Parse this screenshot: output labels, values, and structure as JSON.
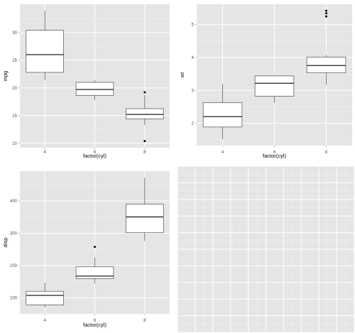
{
  "chart_data": [
    {
      "type": "boxplot",
      "xlabel": "factor(cyl)",
      "ylabel": "mpg",
      "categories": [
        "4",
        "6",
        "8"
      ],
      "boxes": [
        {
          "min": 21.4,
          "q1": 22.8,
          "median": 26.0,
          "q3": 30.4,
          "max": 33.9,
          "outliers": []
        },
        {
          "min": 17.8,
          "q1": 18.65,
          "median": 19.7,
          "q3": 21.0,
          "max": 21.4,
          "outliers": []
        },
        {
          "min": 13.3,
          "q1": 14.4,
          "median": 15.2,
          "q3": 16.25,
          "max": 18.7,
          "outliers": [
            10.4,
            19.2
          ]
        }
      ],
      "yticks": [
        10,
        15,
        20,
        25,
        30
      ],
      "ylim": [
        9.2,
        35.1
      ],
      "grid": true
    },
    {
      "type": "boxplot",
      "xlabel": "factor(cyl)",
      "ylabel": "wt",
      "categories": [
        "4",
        "6",
        "8"
      ],
      "boxes": [
        {
          "min": 1.513,
          "q1": 1.885,
          "median": 2.2,
          "q3": 2.623,
          "max": 3.19,
          "outliers": []
        },
        {
          "min": 2.62,
          "q1": 2.822,
          "median": 3.215,
          "q3": 3.44,
          "max": 3.46,
          "outliers": []
        },
        {
          "min": 3.17,
          "q1": 3.533,
          "median": 3.755,
          "q3": 4.014,
          "max": 4.07,
          "outliers": [
            5.25,
            5.345,
            5.424
          ]
        }
      ],
      "yticks": [
        2,
        3,
        4,
        5
      ],
      "ylim": [
        1.32,
        5.62
      ],
      "grid": true
    },
    {
      "type": "boxplot",
      "xlabel": "factor(cyl)",
      "ylabel": "disp",
      "categories": [
        "4",
        "6",
        "8"
      ],
      "boxes": [
        {
          "min": 71.1,
          "q1": 78.85,
          "median": 108.0,
          "q3": 120.65,
          "max": 146.7,
          "outliers": []
        },
        {
          "min": 145.0,
          "q1": 160.0,
          "median": 167.6,
          "q3": 196.3,
          "max": 225.0,
          "outliers": [
            258.0
          ]
        },
        {
          "min": 275.8,
          "q1": 301.75,
          "median": 350.5,
          "q3": 390.0,
          "max": 472.0,
          "outliers": []
        }
      ],
      "yticks": [
        100,
        200,
        300,
        400
      ],
      "ylim": [
        51,
        492
      ],
      "grid": true
    },
    {
      "type": "empty",
      "grid": true
    }
  ]
}
